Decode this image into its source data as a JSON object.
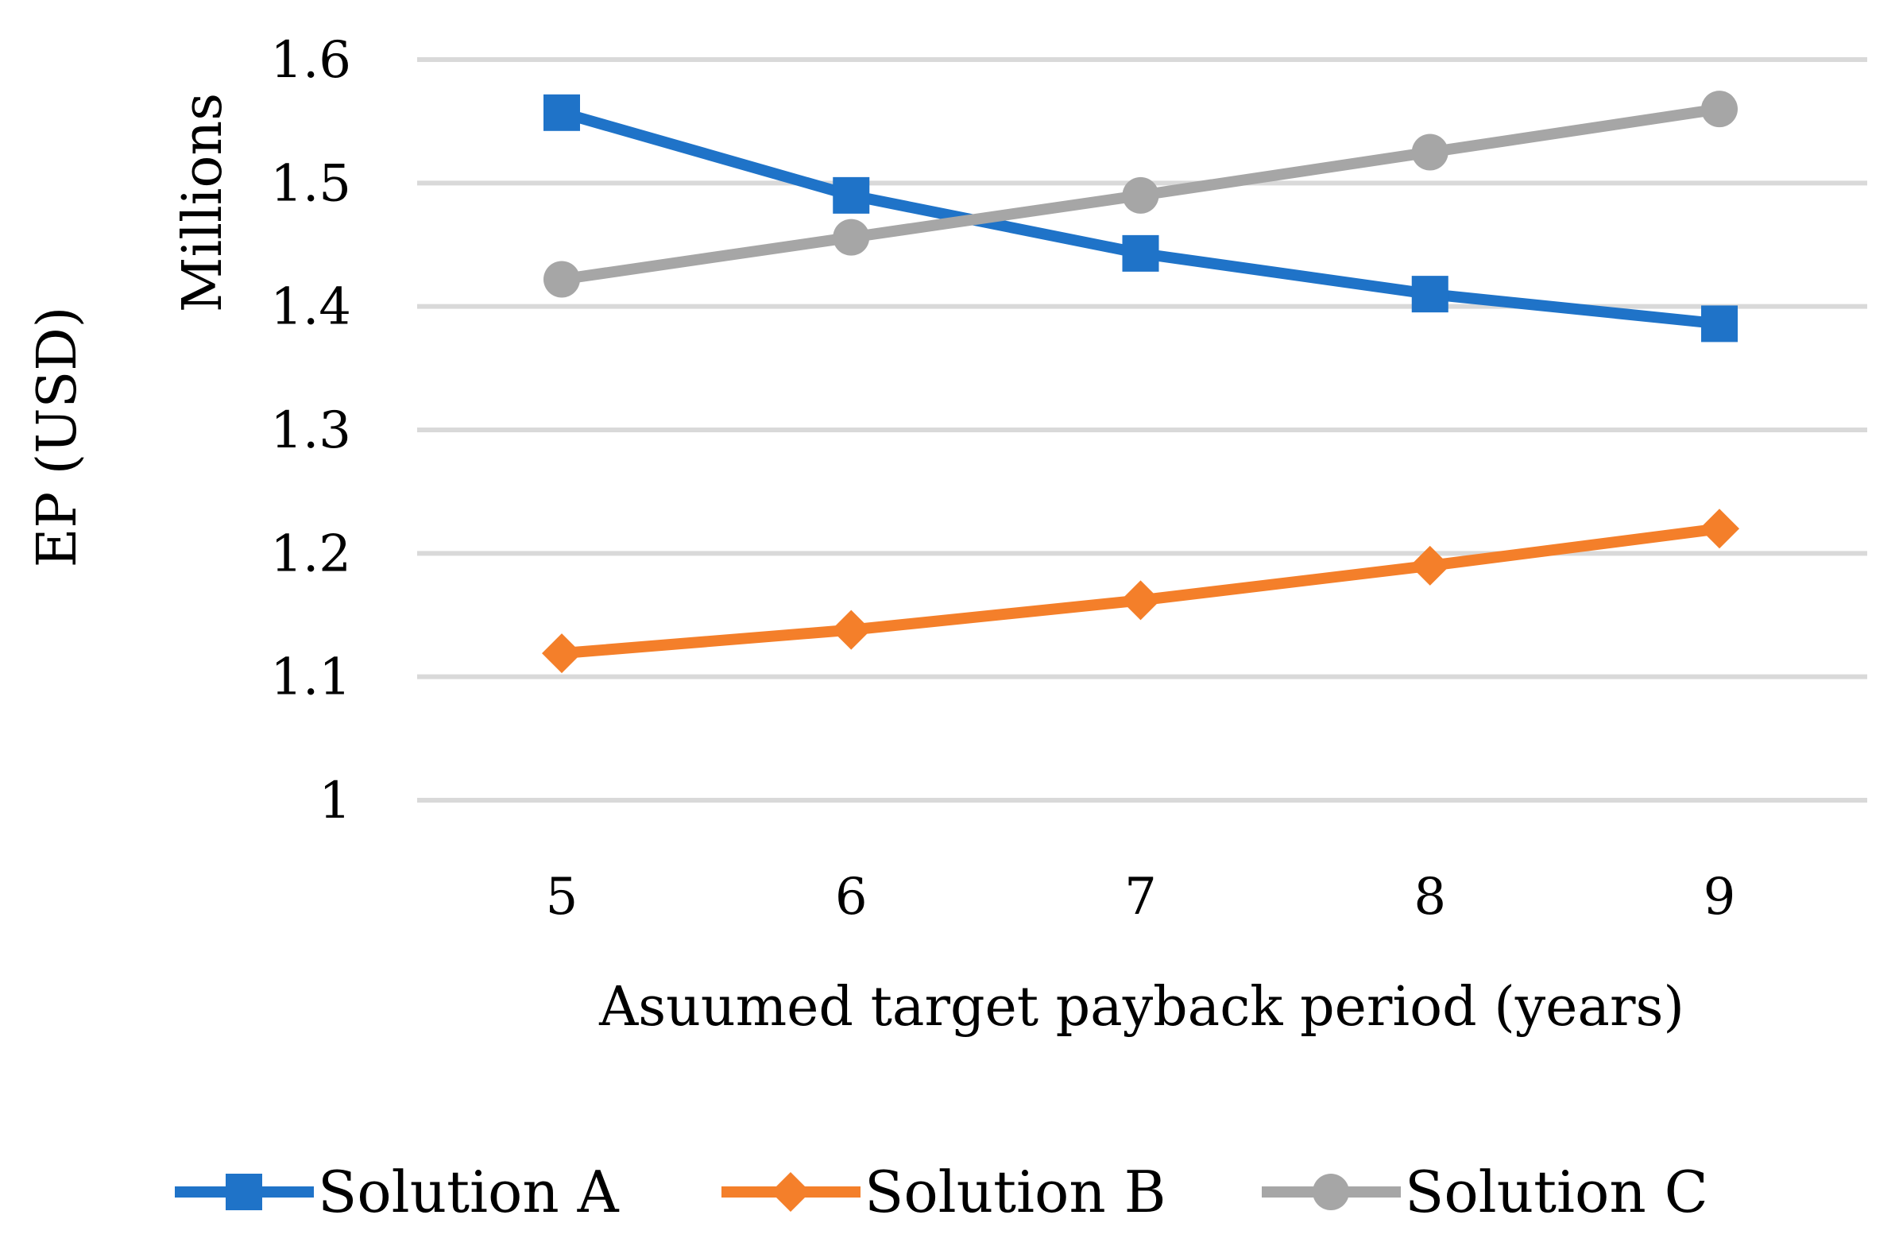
{
  "chart_data": {
    "type": "line",
    "title": "",
    "xlabel": "Asuumed target payback period (years)",
    "ylabel": "EP (USD)",
    "y_unit_label": "Millions",
    "categories": [
      "5",
      "6",
      "7",
      "8",
      "9"
    ],
    "ylim": [
      1,
      1.6
    ],
    "yticks": [
      "1",
      "1.1",
      "1.2",
      "1.3",
      "1.4",
      "1.5",
      "1.6"
    ],
    "grid": true,
    "legend_position": "bottom",
    "series": [
      {
        "name": "Solution A",
        "color": "#1f73c8",
        "marker": "square",
        "values": [
          1.557,
          1.49,
          1.443,
          1.41,
          1.386
        ]
      },
      {
        "name": "Solution B",
        "color": "#f47f2a",
        "marker": "diamond",
        "values": [
          1.119,
          1.138,
          1.162,
          1.19,
          1.22
        ]
      },
      {
        "name": "Solution C",
        "color": "#a6a6a6",
        "marker": "circle",
        "values": [
          1.422,
          1.456,
          1.49,
          1.525,
          1.56
        ]
      }
    ]
  }
}
